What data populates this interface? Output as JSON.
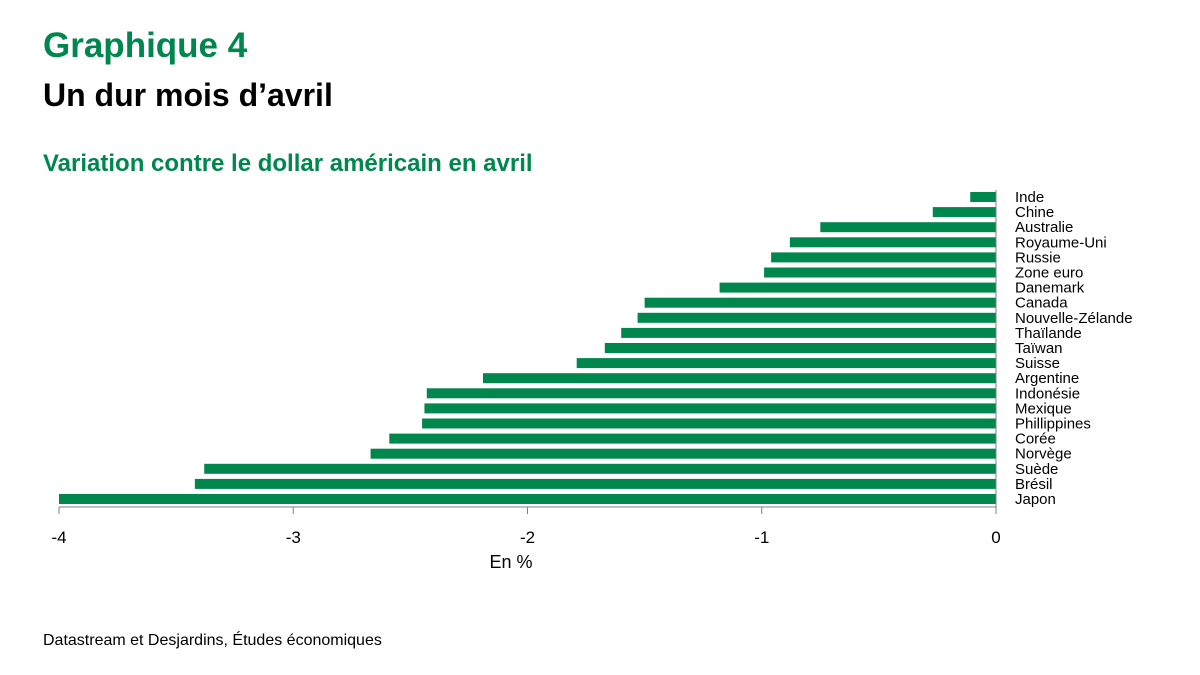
{
  "header": {
    "title": "Graphique 4",
    "subtitle": "Un dur mois d’avril",
    "chart_title": "Variation contre le dollar américain en avril"
  },
  "source": "Datastream et Desjardins, Études économiques",
  "chart_data": {
    "type": "bar",
    "orientation": "horizontal",
    "title": "Variation contre le dollar américain en avril",
    "xlabel": "En %",
    "ylabel": "",
    "xlim": [
      -4,
      0
    ],
    "xticks": [
      "-4",
      "-3",
      "-2",
      "-1",
      "0"
    ],
    "xtick_values": [
      -4,
      -3,
      -2,
      -1,
      0
    ],
    "grid": false,
    "color": "#00874e",
    "categories": [
      "Inde",
      "Chine",
      "Australie",
      "Royaume-Uni",
      "Russie",
      "Zone euro",
      "Danemark",
      "Canada",
      "Nouvelle-Zélande",
      "Thaïlande",
      "Taïwan",
      "Suisse",
      "Argentine",
      "Indonésie",
      "Mexique",
      "Phillippines",
      "Corée",
      "Norvège",
      "Suède",
      "Brésil",
      "Japon"
    ],
    "values": [
      -0.11,
      -0.27,
      -0.75,
      -0.88,
      -0.96,
      -0.99,
      -1.18,
      -1.5,
      -1.53,
      -1.6,
      -1.67,
      -1.79,
      -2.19,
      -2.43,
      -2.44,
      -2.45,
      -2.59,
      -2.67,
      -3.38,
      -3.42,
      -4.0
    ]
  }
}
